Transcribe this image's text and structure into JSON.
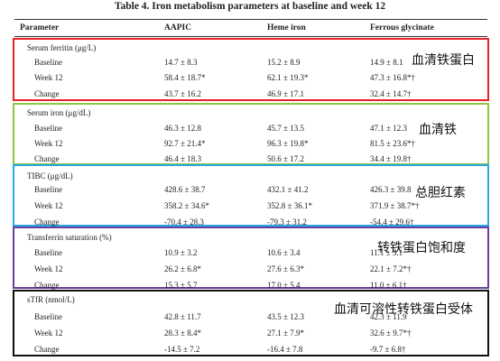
{
  "table": {
    "title": "Table 4. Iron metabolism parameters at baseline and week 12",
    "headers": [
      "Parameter",
      "AAPIC",
      "Heme iron",
      "Ferrous glycinate"
    ],
    "row_labels": [
      "Baseline",
      "Week 12",
      "Change"
    ],
    "sections": [
      {
        "parameter": "Serum ferritin (μg/L)",
        "annotation": "血清铁蛋白",
        "box_color": "#e8202a",
        "rows": [
          [
            "14.7 ± 8.3",
            "15.2 ± 8.9",
            "14.9 ± 8.1"
          ],
          [
            "58.4 ± 18.7*",
            "62.1 ± 19.3*",
            "47.3 ± 16.8*†"
          ],
          [
            "43.7 ± 16.2",
            "46.9 ± 17.1",
            "32.4 ± 14.7†"
          ]
        ]
      },
      {
        "parameter": "Serum iron (μg/dL)",
        "annotation": "血清铁",
        "box_color": "#8dc63f",
        "rows": [
          [
            "46.3 ± 12.8",
            "45.7 ± 13.5",
            "47.1 ± 12.3"
          ],
          [
            "92.7 ± 21.4*",
            "96.3 ± 19.8*",
            "81.5 ± 23.6*†"
          ],
          [
            "46.4 ± 18.3",
            "50.6 ± 17.2",
            "34.4 ± 19.8†"
          ]
        ]
      },
      {
        "parameter": "TIBC (μg/dL)",
        "annotation": "总胆红素",
        "box_color": "#29a8e0",
        "rows": [
          [
            "428.6 ± 38.7",
            "432.1 ± 41.2",
            "426.3 ± 39.8"
          ],
          [
            "358.2 ± 34.6*",
            "352.8 ± 36.1*",
            "371.9 ± 38.7*†"
          ],
          [
            "-70.4 ± 28.3",
            "-79.3 ± 31.2",
            "-54.4 ± 29.6†"
          ]
        ]
      },
      {
        "parameter": "Transferrin saturation (%)",
        "annotation": "转铁蛋白饱和度",
        "box_color": "#6a3fa0",
        "rows": [
          [
            "10.9 ± 3.2",
            "10.6 ± 3.4",
            "11.1 ± 3.1"
          ],
          [
            "26.2 ± 6.8*",
            "27.6 ± 6.3*",
            "22.1 ± 7.2*†"
          ],
          [
            "15.3 ± 5.7",
            "17.0 ± 5.4",
            "11.0 ± 6.1†"
          ]
        ]
      },
      {
        "parameter": "sTfR (nmol/L)",
        "annotation": "血清可溶性转铁蛋白受体",
        "box_color": "#111111",
        "rows": [
          [
            "42.8 ± 11.7",
            "43.5 ± 12.3",
            "42.3 ± 11.9"
          ],
          [
            "28.3 ± 8.4*",
            "27.1 ± 7.9*",
            "32.6 ± 9.7*†"
          ],
          [
            "-14.5 ± 7.2",
            "-16.4 ± 7.8",
            "-9.7 ± 6.8†"
          ]
        ]
      }
    ]
  }
}
